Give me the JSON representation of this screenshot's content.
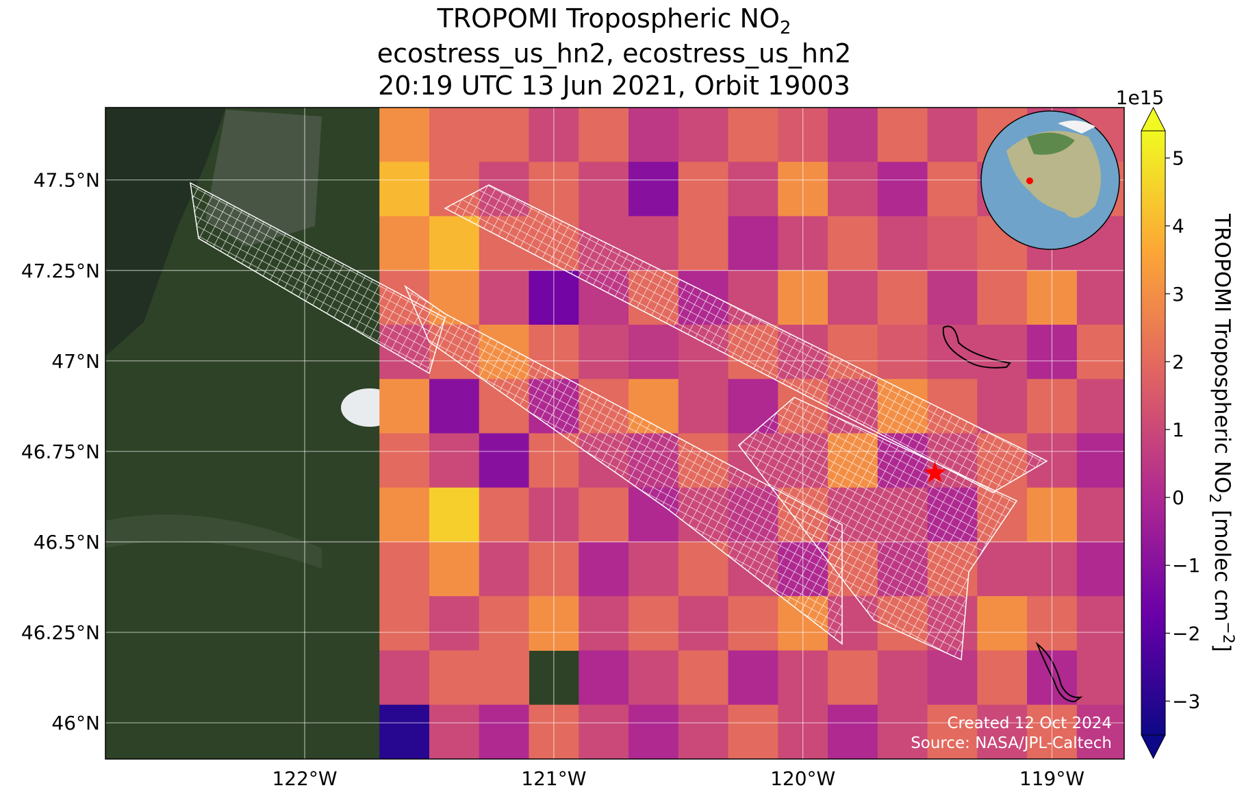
{
  "map": {
    "title": {
      "line1": "TROPOMI Tropospheric NO",
      "line1_sub": "2",
      "line2": "ecostress_us_hn2, ecostress_us_hn2",
      "line3": "20:19 UTC 13 Jun 2021, Orbit 19003"
    },
    "xlim": [
      -122.8,
      -118.71
    ],
    "ylim": [
      45.9,
      47.7
    ],
    "xticks": [
      {
        "value": -122,
        "label": "122°W"
      },
      {
        "value": -121,
        "label": "121°W"
      },
      {
        "value": -120,
        "label": "120°W"
      },
      {
        "value": -119,
        "label": "119°W"
      }
    ],
    "yticks": [
      {
        "value": 46,
        "label": "46°N"
      },
      {
        "value": 46.25,
        "label": "46.25°N"
      },
      {
        "value": 46.5,
        "label": "46.5°N"
      },
      {
        "value": 46.75,
        "label": "46.75°N"
      },
      {
        "value": 47,
        "label": "47°N"
      },
      {
        "value": 47.25,
        "label": "47.25°N"
      },
      {
        "value": 47.5,
        "label": "47.5°N"
      }
    ],
    "grid": true,
    "no2_grid": {
      "lon0": -121.7,
      "lat0": 47.7,
      "dlon": 0.2,
      "dlat": 0.15,
      "values": [
        [
          3,
          2,
          2,
          1,
          2,
          0.5,
          1,
          2,
          1.5,
          0.5,
          2,
          1,
          2,
          1,
          1.5
        ],
        [
          4,
          2,
          1,
          2,
          1,
          -1,
          2,
          1,
          3,
          1,
          0,
          2,
          1,
          1,
          2
        ],
        [
          3,
          4,
          2,
          2,
          1,
          1,
          2,
          0,
          1,
          2,
          1,
          1.5,
          2,
          1,
          1
        ],
        [
          2,
          3,
          1,
          -1.5,
          0.5,
          2,
          0,
          1,
          3,
          1,
          2,
          0.5,
          2,
          3,
          1
        ],
        [
          1,
          2,
          3,
          2,
          1,
          0.5,
          1,
          2,
          1,
          2,
          1.5,
          1,
          1,
          0,
          2
        ],
        [
          3,
          -1,
          2,
          0,
          2,
          3,
          1,
          0,
          2,
          1,
          3,
          2,
          1,
          2,
          1
        ],
        [
          2,
          1,
          -1,
          2,
          1,
          0.5,
          2,
          1,
          1,
          3,
          0,
          1,
          2,
          1,
          0
        ],
        [
          3,
          4.5,
          2,
          1,
          2,
          0,
          1,
          0.5,
          2,
          1,
          1,
          0,
          2,
          3,
          1
        ],
        [
          2,
          3,
          1,
          2,
          0,
          1,
          2,
          1,
          0,
          2,
          0.5,
          2,
          1,
          1,
          0
        ],
        [
          2,
          1,
          2,
          3,
          1,
          2,
          1,
          2,
          3,
          1,
          2,
          1,
          3,
          2,
          1
        ],
        [
          1,
          2,
          2,
          null,
          0,
          1,
          2,
          0,
          1,
          2,
          1,
          0.5,
          2,
          0,
          1
        ],
        [
          -3,
          1,
          0,
          2,
          1,
          0,
          1,
          2,
          1,
          0,
          1,
          2,
          1,
          2,
          0.5
        ]
      ]
    },
    "site": {
      "lon": -119.47,
      "lat": 46.69,
      "color": "#ff0000"
    },
    "colormap": [
      "#0d0887",
      "#6a00a8",
      "#b12a90",
      "#e16462",
      "#fca636",
      "#f0f921"
    ],
    "colorbar": {
      "clim": [
        -3.5,
        5.4
      ],
      "ticks": [
        {
          "value": -3,
          "label": "−3"
        },
        {
          "value": -2,
          "label": "−2"
        },
        {
          "value": -1,
          "label": "−1"
        },
        0,
        1,
        2,
        3,
        4,
        5
      ],
      "scale_label": "1e15",
      "label": {
        "text": "TROPOMI Tropospheric NO",
        "sub": "2",
        "unit": " [molec cm",
        "sup": "−2",
        "end": "]"
      }
    },
    "credits": {
      "created": "Created 12 Oct 2024",
      "source": "Source: NASA/JPL-Caltech"
    }
  }
}
